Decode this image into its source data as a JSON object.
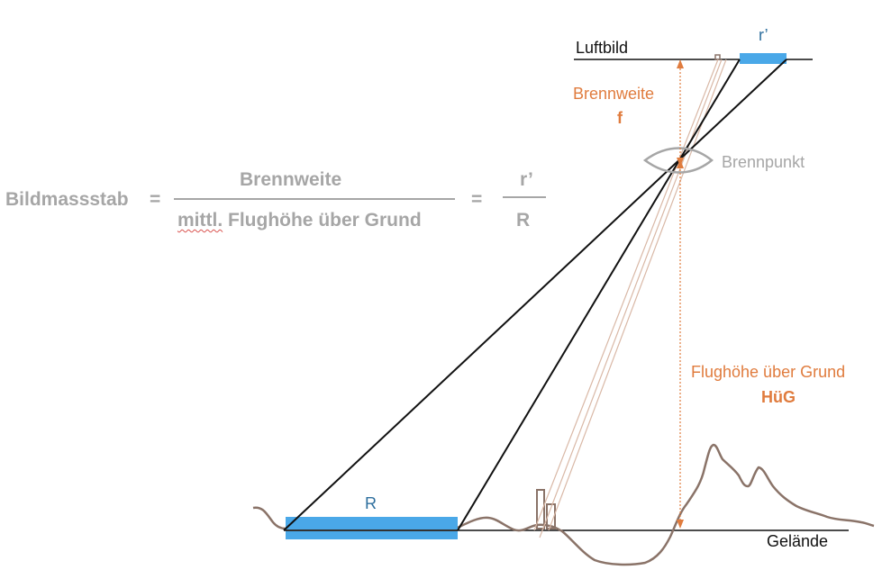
{
  "formula": {
    "lhs": "Bildmassstab",
    "equals": "=",
    "numerator": "Brennweite",
    "denominator_prefix": "mittl.",
    "denominator_rest": " Flughöhe über Grund",
    "rhs_numerator": "r’",
    "rhs_denominator": "R"
  },
  "labels": {
    "luftbild": "Luftbild",
    "r_small": "r’",
    "brennweite": "Brennweite",
    "f": "f",
    "brennpunkt": "Brennpunkt",
    "flughoehe": "Flughöhe über Grund",
    "hug": "HüG",
    "r_big": "R",
    "gelaende": "Gelände"
  },
  "colors": {
    "formula_gray": "#a6a6a6",
    "annotation_orange": "#e07c3e",
    "label_blue": "#2e6f9e",
    "bar_blue": "#4aa8e8",
    "terrain_brown": "#8a7368",
    "ray_beige": "#d9b8a6",
    "line_black": "#111111"
  }
}
